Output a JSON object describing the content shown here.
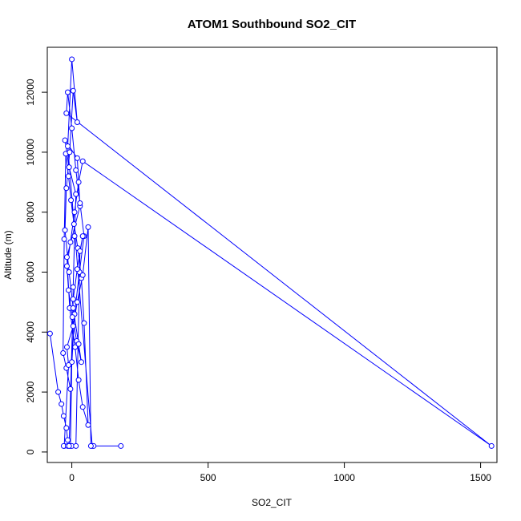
{
  "chart_data": {
    "type": "line",
    "title": "ATOM1 Southbound SO2_CIT",
    "xlabel": "SO2_CIT",
    "ylabel": "Altitude (m)",
    "xlim": [
      -90,
      1560
    ],
    "ylim": [
      -350,
      13500
    ],
    "x_ticks": [
      0,
      500,
      1000,
      1500
    ],
    "x_tick_labels": [
      "0",
      "500",
      "1000",
      "1500"
    ],
    "y_ticks": [
      0,
      2000,
      4000,
      6000,
      8000,
      10000,
      12000
    ],
    "y_tick_labels": [
      "0",
      "2000",
      "4000",
      "6000",
      "8000",
      "10000",
      "12000"
    ],
    "grid": false,
    "series": [
      {
        "color": "#0000ff",
        "marker": "open-circle",
        "x": [
          -80,
          -50,
          -38,
          -30,
          -20,
          -15,
          -5,
          0,
          5,
          10,
          15,
          -10,
          -25,
          20,
          30,
          -18,
          -8,
          12,
          25,
          40,
          60,
          45,
          35,
          22,
          8,
          -3,
          -12,
          -22,
          -28,
          -32,
          -20,
          -5,
          10,
          28,
          45,
          30,
          15,
          0,
          -15,
          -20,
          1540,
          40,
          25,
          10,
          -5,
          -18,
          -12,
          2,
          18,
          35,
          25,
          5,
          -10,
          -25,
          -20,
          -8,
          5,
          20,
          0,
          -15,
          75,
          80,
          180,
          70,
          60,
          40,
          20,
          5,
          -18,
          -12,
          -28,
          -30,
          -15,
          0,
          15,
          30,
          40,
          20,
          5,
          -10
        ],
        "y": [
          3950,
          2000,
          1600,
          1200,
          800,
          400,
          200,
          3000,
          5500,
          7200,
          8600,
          9500,
          10400,
          9800,
          8200,
          6500,
          4800,
          3500,
          2400,
          1500,
          900,
          4300,
          5800,
          6800,
          7600,
          8400,
          9200,
          9950,
          7100,
          3300,
          2800,
          2100,
          4600,
          6000,
          7200,
          8300,
          9400,
          10800,
          12000,
          11300,
          200,
          9700,
          9000,
          8000,
          7000,
          6200,
          5400,
          4500,
          3700,
          3000,
          3600,
          4800,
          6000,
          7400,
          8800,
          10000,
          12050,
          11000,
          13100,
          10200,
          200,
          200,
          200,
          200,
          7500,
          5900,
          5000,
          4200,
          3500,
          2900,
          200,
          200,
          200,
          200,
          200,
          6700,
          7200,
          6100,
          5100,
          200
        ]
      }
    ]
  }
}
